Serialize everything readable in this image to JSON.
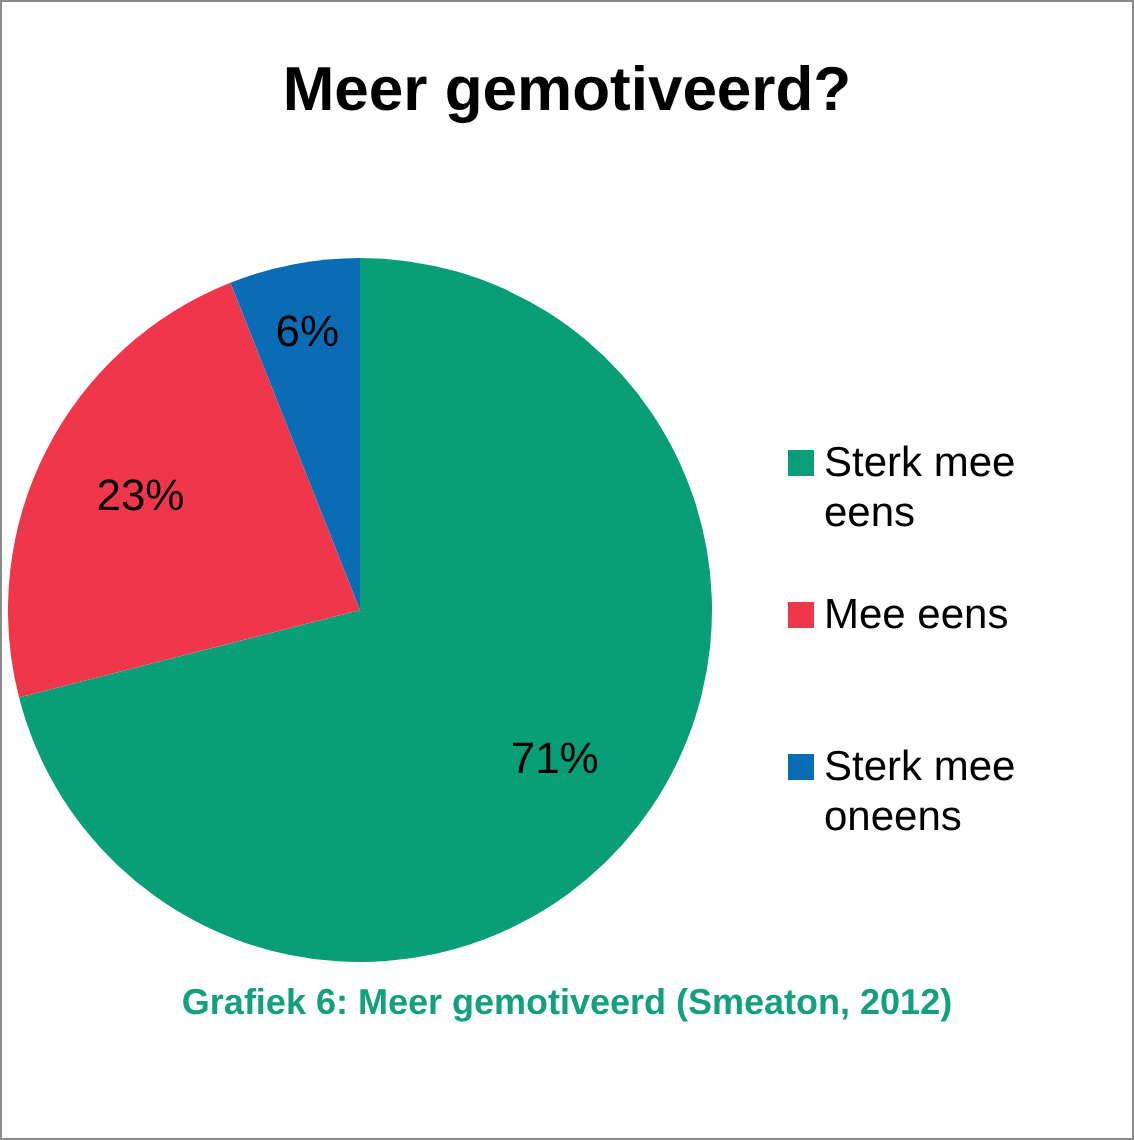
{
  "chart_data": {
    "type": "pie",
    "title": "Meer gemotiveerd?",
    "categories": [
      "Sterk mee eens",
      "Mee eens",
      "Sterk mee oneens"
    ],
    "values": [
      71,
      23,
      6
    ],
    "colors": [
      "#089e78",
      "#f0364a",
      "#0a6cb4"
    ],
    "value_labels": [
      "71%",
      "23%",
      "6%"
    ],
    "legend": "right",
    "annotations": [
      "Grafiek 6: Meer gemotiveerd (Smeaton, 2012)"
    ]
  }
}
